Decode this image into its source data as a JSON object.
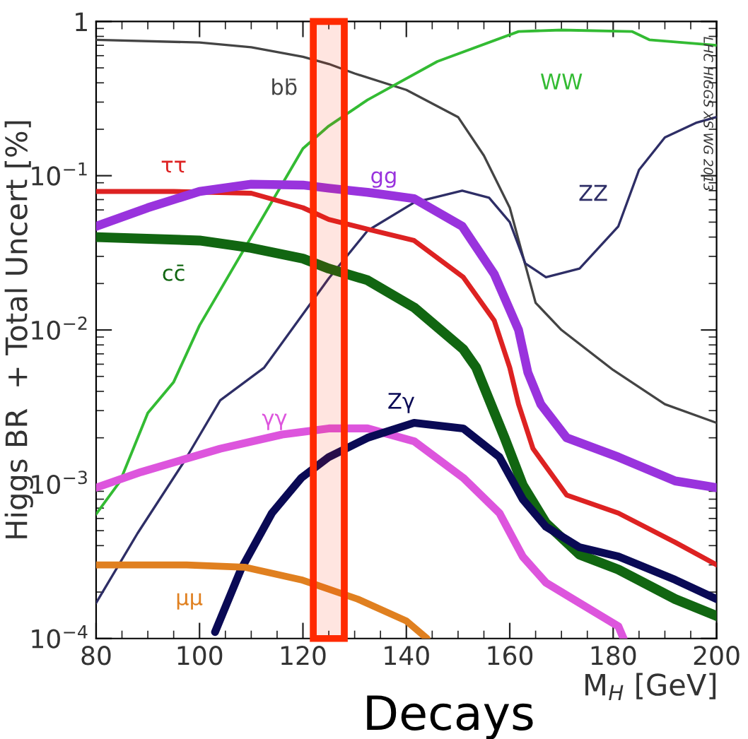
{
  "chart_data": {
    "type": "line",
    "ylabel": "Higgs BR  + Total Uncert [%]",
    "xlabel": "M$_{H}$ [GeV]",
    "annotations": [
      "Decays",
      "LHC HIGGS XS WG 2013"
    ],
    "log": "y",
    "grid": false,
    "legend": false,
    "marker": "none",
    "line_style": "solid",
    "xlim": [
      80,
      200
    ],
    "xticks": [
      80,
      100,
      120,
      140,
      160,
      180,
      200
    ],
    "ylim": [
      0.0001,
      1
    ],
    "yticks": [
      {
        "value": 0.0001,
        "label": "10$^{−4}$"
      },
      {
        "value": 0.001,
        "label": "10$^{−3}$"
      },
      {
        "value": 0.01,
        "label": "10$^{−2}$"
      },
      {
        "value": 0.1,
        "label": "10$^{−1}$"
      },
      1
    ],
    "bands": [
      {
        "axis": "x",
        "from": 122,
        "to": 128,
        "color": "#ff2a00"
      }
    ],
    "series": [
      {
        "name": "bb̄",
        "color": "#444444",
        "x": [
          80,
          100,
          110,
          120,
          125,
          130,
          140,
          150,
          155,
          160,
          165,
          170,
          180,
          190,
          200
        ],
        "values": [
          0.76,
          0.73,
          0.68,
          0.59,
          0.53,
          0.46,
          0.36,
          0.24,
          0.135,
          0.062,
          0.015,
          0.01,
          0.0055,
          0.0033,
          0.0025
        ]
      },
      {
        "name": "WW",
        "color": "#33bb33",
        "x": [
          80,
          84.6,
          90,
          95,
          100,
          110,
          120,
          125,
          132.5,
          146,
          161.7,
          170,
          183.7,
          187,
          200
        ],
        "values": [
          0.00064,
          0.00104,
          0.0029,
          0.0046,
          0.0107,
          0.04,
          0.15,
          0.21,
          0.31,
          0.55,
          0.86,
          0.88,
          0.86,
          0.76,
          0.7
        ]
      },
      {
        "name": "ZZ",
        "color": "#2e2e66",
        "x": [
          80,
          88,
          97,
          104,
          112.5,
          125,
          132.5,
          141.5,
          150.8,
          156,
          160,
          163,
          167,
          173.5,
          181,
          185,
          190,
          196,
          200
        ],
        "values": [
          0.00017,
          0.00048,
          0.0014,
          0.0035,
          0.0057,
          0.0216,
          0.044,
          0.067,
          0.08,
          0.072,
          0.05,
          0.027,
          0.022,
          0.025,
          0.047,
          0.109,
          0.177,
          0.22,
          0.24
        ]
      },
      {
        "name": "ττ",
        "color": "#dd2222",
        "x": [
          80,
          95,
          110,
          120,
          125,
          132.5,
          141.5,
          151,
          157,
          160,
          161.7,
          164.5,
          171,
          181,
          192,
          200
        ],
        "values": [
          0.079,
          0.079,
          0.077,
          0.062,
          0.052,
          0.045,
          0.038,
          0.022,
          0.0115,
          0.0057,
          0.0033,
          0.0017,
          0.00085,
          0.00065,
          0.00042,
          0.0003
        ]
      },
      {
        "name": "gg",
        "color": "#9933dd",
        "x": [
          80,
          90,
          100,
          110,
          120,
          125,
          132.5,
          141.5,
          150.8,
          157,
          161.7,
          163.5,
          166,
          171,
          181,
          192,
          200
        ],
        "values": [
          0.047,
          0.062,
          0.079,
          0.088,
          0.087,
          0.083,
          0.078,
          0.071,
          0.047,
          0.023,
          0.01,
          0.0053,
          0.0033,
          0.002,
          0.0015,
          0.00105,
          0.00095
        ]
      },
      {
        "name": "cc̄",
        "color": "#116611",
        "x": [
          80,
          100,
          110,
          120,
          125,
          132.5,
          141.5,
          151,
          153.5,
          159,
          162.5,
          167,
          173.5,
          181,
          192,
          200
        ],
        "values": [
          0.04,
          0.038,
          0.034,
          0.029,
          0.025,
          0.021,
          0.014,
          0.0075,
          0.0057,
          0.002,
          0.00099,
          0.00056,
          0.00035,
          0.00028,
          0.00018,
          0.00014
        ]
      },
      {
        "name": "γγ",
        "color": "#dd55dd",
        "x": [
          80,
          88.7,
          104,
          116,
          125,
          132.5,
          141.5,
          151,
          158,
          162.5,
          167,
          173.5,
          181,
          182
        ],
        "values": [
          0.00095,
          0.0012,
          0.0017,
          0.0021,
          0.0023,
          0.0023,
          0.0019,
          0.0011,
          0.00065,
          0.00034,
          0.00023,
          0.00017,
          0.00012,
          0.0001
        ]
      },
      {
        "name": "Zγ",
        "color": "#0a0a55",
        "x": [
          103,
          108,
          114,
          119.7,
          125,
          132.5,
          141.5,
          151,
          158,
          162.5,
          167,
          173.5,
          181,
          192,
          200
        ],
        "values": [
          0.00011,
          0.00028,
          0.00065,
          0.0011,
          0.0015,
          0.002,
          0.0025,
          0.0023,
          0.0015,
          0.0008,
          0.00053,
          0.00039,
          0.00034,
          0.00024,
          0.00018
        ]
      },
      {
        "name": "μμ",
        "color": "#e08020",
        "x": [
          80,
          97.5,
          108.7,
          119.7,
          130.6,
          140,
          144
        ],
        "values": [
          0.0003,
          0.0003,
          0.00029,
          0.00024,
          0.00018,
          0.00013,
          0.0001
        ]
      }
    ]
  }
}
